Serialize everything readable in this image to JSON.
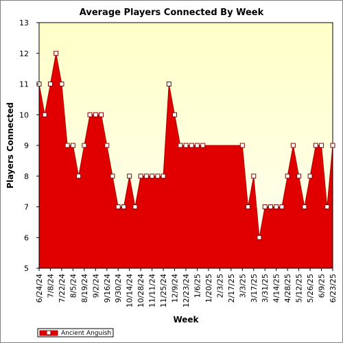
{
  "chart_data": {
    "type": "area",
    "title": "Average Players Connected By Week",
    "xlabel": "Week",
    "ylabel": "Players Connected",
    "ylim": [
      5,
      13
    ],
    "yticks": [
      "5",
      "6",
      "7",
      "8",
      "9",
      "10",
      "11",
      "12",
      "13"
    ],
    "x_tick_labels": [
      "6/24/24",
      "7/8/24",
      "7/22/24",
      "8/5/24",
      "8/19/24",
      "9/2/24",
      "9/16/24",
      "9/30/24",
      "10/14/24",
      "10/28/24",
      "11/11/24",
      "11/25/24",
      "12/9/24",
      "12/23/24",
      "1/6/25",
      "1/20/25",
      "2/3/25",
      "2/17/25",
      "3/3/25",
      "3/17/25",
      "3/31/25",
      "4/14/25",
      "4/28/25",
      "5/12/25",
      "5/26/25",
      "6/9/25",
      "6/23/25"
    ],
    "series": [
      {
        "name": "Ancient Anguish",
        "color": "#e00000",
        "values": [
          11,
          10,
          11,
          12,
          11,
          9,
          9,
          8,
          9,
          10,
          10,
          10,
          9,
          8,
          7,
          7,
          8,
          7,
          8,
          8,
          8,
          8,
          8,
          11,
          10,
          9,
          9,
          9,
          9,
          9,
          9,
          9,
          9,
          9,
          9,
          9,
          9,
          7,
          8,
          6,
          7,
          7,
          7,
          7,
          8,
          9,
          8,
          7,
          8,
          9,
          9,
          7,
          9
        ],
        "markers_hidden_from": 30,
        "markers_hidden_to": 35
      }
    ],
    "grid": false,
    "background_gradient": [
      "#ffffc8",
      "#fffff5"
    ],
    "legend_position": "bottom-left"
  }
}
